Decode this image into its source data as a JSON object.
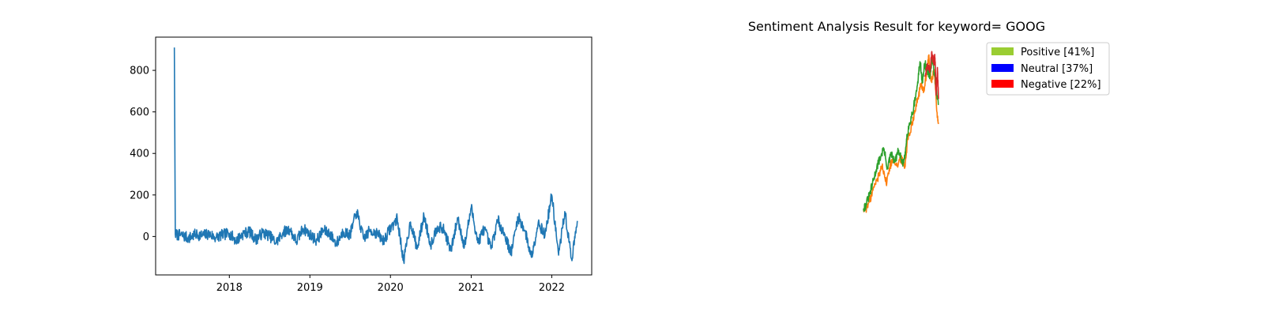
{
  "chart_data": [
    {
      "type": "line",
      "title": "",
      "xlabel": "",
      "ylabel": "",
      "xlim": [
        "2017-02-01",
        "2022-07-01"
      ],
      "ylim": [
        -185,
        960
      ],
      "x_ticks": [
        "2018",
        "2019",
        "2020",
        "2021",
        "2022"
      ],
      "y_ticks": [
        0,
        200,
        400,
        600,
        800
      ],
      "grid": false,
      "legend": "none",
      "series_color": "#1f77b4",
      "series": [
        {
          "x": [
            "2017-04-27",
            "2017-05-01",
            "2017-06-01",
            "2017-07-01",
            "2017-08-01",
            "2017-09-01",
            "2017-10-01",
            "2017-11-01",
            "2017-12-01",
            "2018-01-01",
            "2018-02-01",
            "2018-03-01",
            "2018-04-01",
            "2018-05-01",
            "2018-06-01",
            "2018-07-01",
            "2018-08-01",
            "2018-09-01",
            "2018-10-01",
            "2018-11-01",
            "2018-12-01",
            "2019-01-01",
            "2019-02-01",
            "2019-03-01",
            "2019-04-01",
            "2019-05-01",
            "2019-06-01",
            "2019-07-01",
            "2019-08-01",
            "2019-09-01",
            "2019-10-01",
            "2019-11-01",
            "2019-12-01",
            "2020-01-01",
            "2020-02-01",
            "2020-03-01",
            "2020-04-01",
            "2020-05-01",
            "2020-06-01",
            "2020-07-01",
            "2020-08-01",
            "2020-09-01",
            "2020-10-01",
            "2020-11-01",
            "2020-12-01",
            "2021-01-01",
            "2021-02-01",
            "2021-03-01",
            "2021-04-01",
            "2021-05-01",
            "2021-06-01",
            "2021-07-01",
            "2021-08-01",
            "2021-09-01",
            "2021-10-01",
            "2021-11-01",
            "2021-12-01",
            "2022-01-01",
            "2022-02-01",
            "2022-03-01",
            "2022-04-01",
            "2022-04-28"
          ],
          "values": [
            910,
            10,
            5,
            -8,
            10,
            5,
            12,
            -5,
            8,
            15,
            -20,
            10,
            25,
            -15,
            18,
            5,
            -30,
            20,
            35,
            -25,
            40,
            10,
            -20,
            30,
            15,
            -35,
            25,
            5,
            120,
            -10,
            30,
            15,
            -20,
            40,
            85,
            -120,
            70,
            -60,
            100,
            -40,
            50,
            30,
            -70,
            90,
            -50,
            140,
            -30,
            40,
            -60,
            80,
            10,
            -80,
            95,
            30,
            -100,
            70,
            5,
            200,
            -90,
            120,
            -110,
            75
          ]
        }
      ]
    },
    {
      "type": "line",
      "title": "Sentiment Analysis Result for keyword= GOOG",
      "xlabel": "",
      "ylabel": "",
      "xlim": [
        "2017-04-27",
        "2022-04-28"
      ],
      "ylim": [
        100,
        950
      ],
      "axes": "off",
      "grid": false,
      "legend": "top-right",
      "legend_entries": [
        {
          "label": "Positive [41%]",
          "color": "#9acd32"
        },
        {
          "label": "Neutral [37%]",
          "color": "#0000ff"
        },
        {
          "label": "Negative [22%]",
          "color": "#ff0000"
        }
      ],
      "series": [
        {
          "color": "#2ca02c",
          "x": [
            "2017-04-27",
            "2017-07-01",
            "2017-10-01",
            "2018-01-01",
            "2018-03-01",
            "2018-06-01",
            "2018-09-01",
            "2018-12-01",
            "2019-03-01",
            "2019-06-01",
            "2019-09-01",
            "2019-12-01",
            "2020-02-01",
            "2020-03-20",
            "2020-06-01",
            "2020-09-01",
            "2020-12-01",
            "2021-02-01",
            "2021-04-01",
            "2021-06-01",
            "2021-08-01",
            "2021-10-01",
            "2021-11-15",
            "2022-01-01",
            "2022-03-01",
            "2022-04-28"
          ],
          "values": [
            125,
            145,
            200,
            270,
            320,
            380,
            430,
            330,
            400,
            360,
            420,
            350,
            380,
            500,
            560,
            640,
            750,
            870,
            770,
            860,
            820,
            790,
            880,
            830,
            740,
            650
          ]
        },
        {
          "color": "#ff7f0e",
          "x": [
            "2017-04-27",
            "2017-08-01",
            "2017-11-01",
            "2018-02-01",
            "2018-05-01",
            "2018-08-01",
            "2018-11-01",
            "2019-02-01",
            "2019-05-01",
            "2019-08-01",
            "2019-11-01",
            "2020-02-01",
            "2020-04-01",
            "2020-07-01",
            "2020-10-01",
            "2021-01-01",
            "2021-03-01",
            "2021-05-01",
            "2021-07-01",
            "2021-09-01",
            "2021-11-01",
            "2022-01-15",
            "2022-03-15",
            "2022-04-28"
          ],
          "values": [
            118,
            130,
            190,
            245,
            290,
            350,
            250,
            340,
            380,
            340,
            380,
            335,
            470,
            540,
            620,
            700,
            760,
            720,
            790,
            900,
            770,
            830,
            620,
            560
          ]
        },
        {
          "color": "#d62728",
          "x": [
            "2021-06-01",
            "2021-08-01",
            "2021-10-01",
            "2021-11-20",
            "2022-01-01",
            "2022-02-01",
            "2022-03-01",
            "2022-04-01",
            "2022-04-28"
          ],
          "values": [
            800,
            860,
            820,
            910,
            860,
            890,
            700,
            840,
            680
          ]
        }
      ]
    }
  ]
}
